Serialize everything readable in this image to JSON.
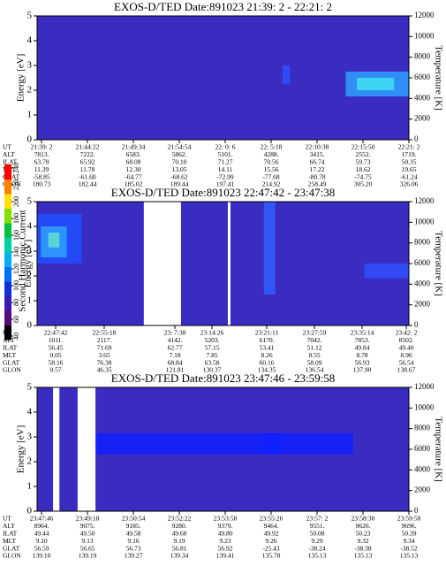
{
  "chart_data": [
    {
      "type": "heatmap",
      "title": "EXOS-D/TED   Date:891023  21:39: 2 - 22:21: 2",
      "ylabel": "Energy [eV]",
      "y2label": "Temperature [K]",
      "ylim": [
        0,
        5
      ],
      "yticks": [
        0,
        1,
        2,
        3,
        4,
        5
      ],
      "y2lim": [
        0,
        12000
      ],
      "y2ticks": [
        0,
        2000,
        4000,
        6000,
        8000,
        10000,
        12000
      ],
      "row_labels": [
        "UT",
        "ALT",
        "ILAT",
        "MLT",
        "GLAT",
        "GLON"
      ],
      "rows": [
        [
          "21:39: 2",
          "21:44:22",
          "21:49:34",
          "21:54:54",
          "22: 0: 6",
          "22: 5:18",
          "22:10:38",
          "22:15:50",
          "22:21: 2"
        ],
        [
          "7813.",
          "7222.",
          "6583.",
          "5862.",
          "5101.",
          "4288.",
          "3415.",
          "2552.",
          "1719."
        ],
        [
          "63.78",
          "65.92",
          "68.08",
          "70.10",
          "71.27",
          "70.56",
          "66.74",
          "59.73",
          "50.35"
        ],
        [
          "11.39",
          "11.78",
          "12.30",
          "13.05",
          "14.11",
          "15.56",
          "17.22",
          "18.62",
          "19.65"
        ],
        [
          "-58.85",
          "-61.60",
          "-64.77",
          "-68.62",
          "-72.99",
          "-77.68",
          "-80.78",
          "-74.75",
          "-61.24"
        ],
        [
          "180.73",
          "182.44",
          "185.02",
          "189.44",
          "197.41",
          "214.92",
          "258.49",
          "305.20",
          "326.06"
        ]
      ]
    },
    {
      "type": "heatmap",
      "title": "EXOS-D/TED   Date:891023  22:47:42 - 23:47:38",
      "ylabel": "Energy [eV]",
      "y2label": "Temperature [K]",
      "ylim": [
        0,
        5
      ],
      "yticks": [
        0,
        1,
        2,
        3,
        4,
        5
      ],
      "y2lim": [
        0,
        12000
      ],
      "y2ticks": [
        0,
        2000,
        4000,
        6000,
        8000,
        10000,
        12000
      ],
      "row_labels": [
        "UT",
        "ALT",
        "ILAT",
        "MLT",
        "GLAT",
        "GLON"
      ],
      "rows": [
        [
          "22:47:42",
          "22:55:18",
          "23: 7:38",
          "23:14:26",
          "23:21:11",
          "23:27:59",
          "23:35:14",
          "23:42: 2"
        ],
        [
          "1011.",
          "2117.",
          "4142.",
          "5203.",
          "6170.",
          "7042.",
          "7853.",
          "8502."
        ],
        [
          "56.45",
          "71.69",
          "62.77",
          "57.15",
          "53.41",
          "51.12",
          "49.84",
          "49.40"
        ],
        [
          "0.05",
          "3.65",
          "7.18",
          "7.85",
          "8.26",
          "8.55",
          "8.78",
          "8.96"
        ],
        [
          "58.16",
          "76.38",
          "68.84",
          "63.58",
          "60.16",
          "58.09",
          "56.93",
          "56.54"
        ],
        [
          "0.57",
          "46.35",
          "121.81",
          "130.37",
          "134.35",
          "136.54",
          "137.90",
          "138.67"
        ]
      ]
    },
    {
      "type": "heatmap",
      "title": "EXOS-D/TED   Date:891023  23:47:46 - 23:59:58",
      "ylabel": "Energy [eV]",
      "y2label": "Temperature [K]",
      "ylim": [
        0,
        5
      ],
      "yticks": [
        0,
        1,
        2,
        3,
        4,
        5
      ],
      "y2lim": [
        0,
        12000
      ],
      "y2ticks": [
        0,
        2000,
        4000,
        6000,
        8000,
        10000,
        12000
      ],
      "row_labels": [
        "UT",
        "ALT",
        "ILAT",
        "MLT",
        "GLAT",
        "GLON"
      ],
      "rows": [
        [
          "23:47:46",
          "23:49:18",
          "23:50:54",
          "23:52:22",
          "23:53:58",
          "23:55:26",
          "23:57: 2",
          "23:58:30",
          "23:59:58"
        ],
        [
          "8964.",
          "9075.",
          "9185.",
          "9280.",
          "9379.",
          "9464.",
          "9551.",
          "9626.",
          "9696."
        ],
        [
          "49.44",
          "49.50",
          "49.58",
          "49.68",
          "49.80",
          "49.92",
          "50.08",
          "50.23",
          "50.39"
        ],
        [
          "9.10",
          "9.13",
          "9.16",
          "9.19",
          "9.23",
          "9.26",
          "9.29",
          "9.32",
          "9.34"
        ],
        [
          "56.59",
          "56.65",
          "56.73",
          "56.81",
          "56.92",
          "-25.43",
          "-38.24",
          "-38.38",
          "-38.52"
        ],
        [
          "139.10",
          "139.19",
          "139.27",
          "139.34",
          "139.41",
          "135.70",
          "135.13",
          "135.13",
          "135.13"
        ]
      ]
    }
  ],
  "colorbar": {
    "label": "Second Harmonic Current",
    "ticks": [
      40,
      60,
      80,
      100,
      120,
      140,
      160,
      180,
      200,
      220,
      240
    ]
  }
}
